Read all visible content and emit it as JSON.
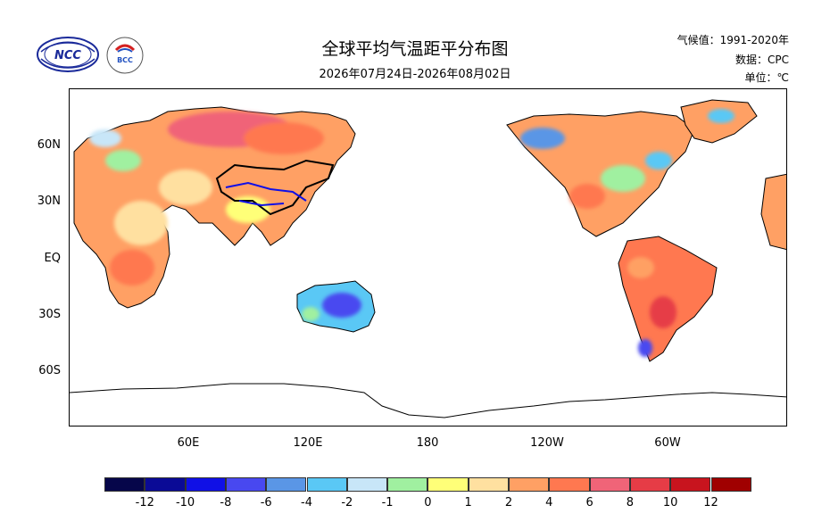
{
  "title": "全球平均气温距平分布图",
  "subtitle": "2026年07月24日-2026年08月02日",
  "meta": {
    "baseline": "气候值：1991-2020年",
    "source": "数据：CPC",
    "unit": "单位：℃"
  },
  "logos": {
    "ncc": "NCC",
    "bcc": "BCC"
  },
  "axes": {
    "lat_labels": [
      "60N",
      "30N",
      "EQ",
      "30S",
      "60S"
    ],
    "lon_labels": [
      "60E",
      "120E",
      "180",
      "120W",
      "60W"
    ]
  },
  "colorbar": {
    "labels": [
      "-12",
      "-10",
      "-8",
      "-6",
      "-4",
      "-2",
      "-1",
      "0",
      "1",
      "2",
      "4",
      "6",
      "8",
      "10",
      "12"
    ],
    "colors": [
      "#06064a",
      "#0a0a96",
      "#1010e6",
      "#4848f0",
      "#5a96e6",
      "#5ac8f5",
      "#c8e6f8",
      "#a0f0a0",
      "#ffff78",
      "#ffe0a0",
      "#ffa064",
      "#ff7850",
      "#f06478",
      "#e63c46",
      "#c8141e",
      "#a00000"
    ]
  }
}
